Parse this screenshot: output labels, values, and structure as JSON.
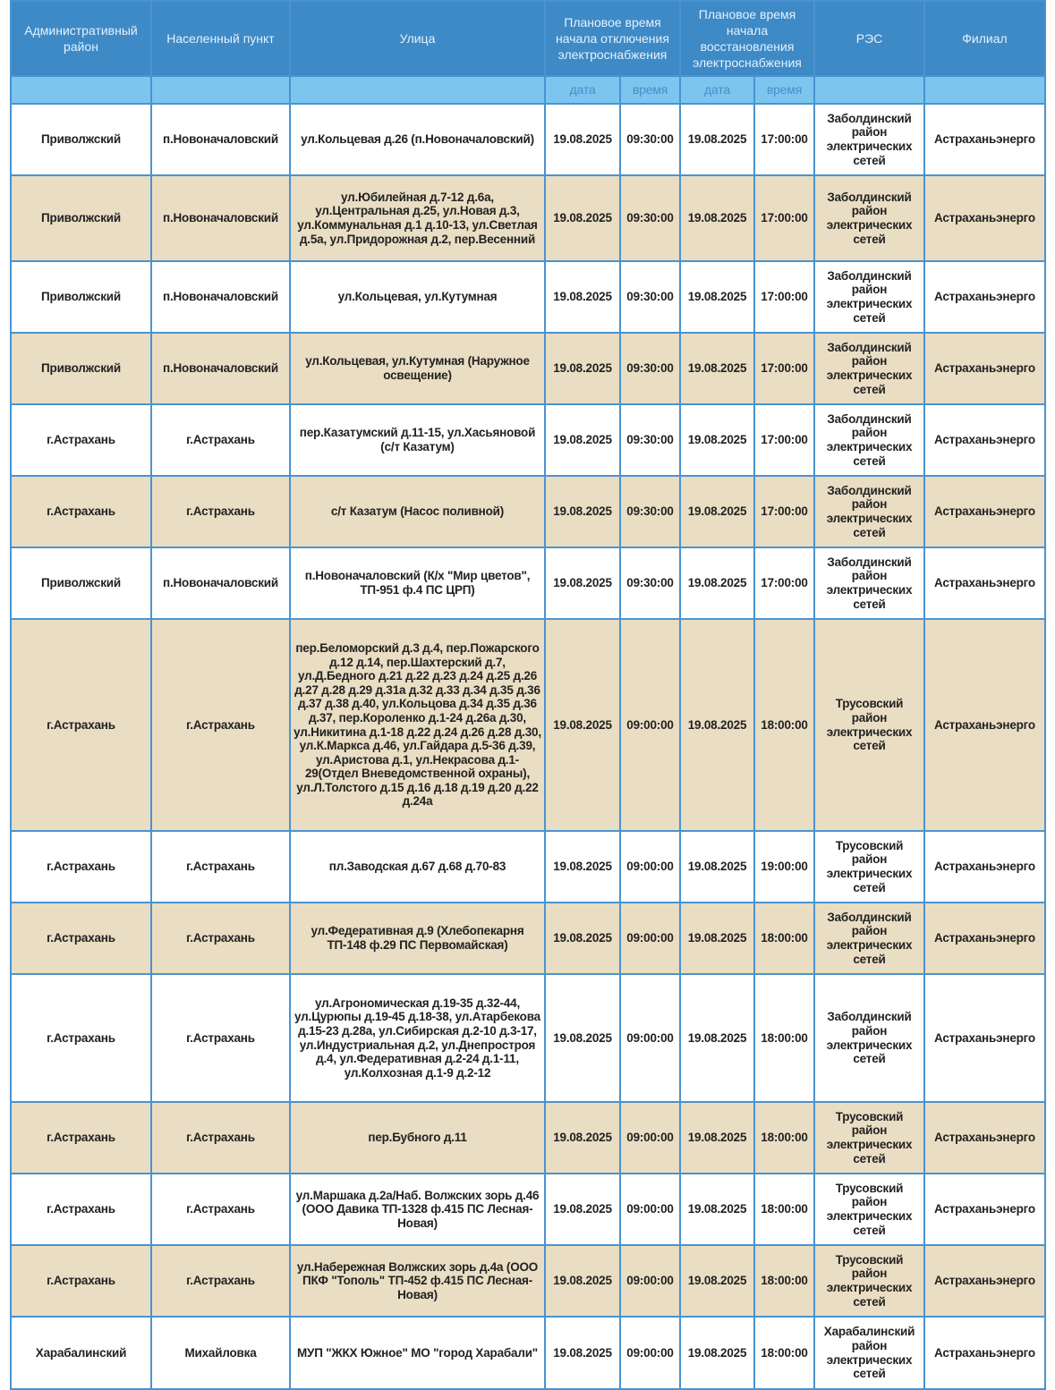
{
  "headers": {
    "district": "Административный район",
    "settlement": "Населенный пункт",
    "street": "Улица",
    "off_time": "Плановое время начала отключения электроснабжения",
    "on_time": "Плановое время начала восстановления электроснабжения",
    "res": "РЭС",
    "branch": "Филиал",
    "date": "дата",
    "time": "время"
  },
  "rows": [
    {
      "district": "Приволжский",
      "settlement": "п.Новоначаловский",
      "street": "ул.Кольцевая д.26 (п.Новоначаловский)",
      "off_date": "19.08.2025",
      "off_time": "09:30:00",
      "on_date": "19.08.2025",
      "on_time": "17:00:00",
      "res": "Заболдинский район электрических сетей",
      "branch": "Астраханьэнерго"
    },
    {
      "district": "Приволжский",
      "settlement": "п.Новоначаловский",
      "street": "ул.Юбилейная д.7-12 д.6а, ул.Центральная д.25, ул.Новая д.3, ул.Коммунальная д.1 д.10-13, ул.Светлая д.5а, ул.Придорожная д.2, пер.Весенний",
      "off_date": "19.08.2025",
      "off_time": "09:30:00",
      "on_date": "19.08.2025",
      "on_time": "17:00:00",
      "res": "Заболдинский район электрических сетей",
      "branch": "Астраханьэнерго"
    },
    {
      "district": "Приволжский",
      "settlement": "п.Новоначаловский",
      "street": "ул.Кольцевая, ул.Кутумная",
      "off_date": "19.08.2025",
      "off_time": "09:30:00",
      "on_date": "19.08.2025",
      "on_time": "17:00:00",
      "res": "Заболдинский район электрических сетей",
      "branch": "Астраханьэнерго"
    },
    {
      "district": "Приволжский",
      "settlement": "п.Новоначаловский",
      "street": "ул.Кольцевая, ул.Кутумная (Наружное освещение)",
      "off_date": "19.08.2025",
      "off_time": "09:30:00",
      "on_date": "19.08.2025",
      "on_time": "17:00:00",
      "res": "Заболдинский район электрических сетей",
      "branch": "Астраханьэнерго"
    },
    {
      "district": "г.Астрахань",
      "settlement": "г.Астрахань",
      "street": "пер.Казатумский д.11-15, ул.Хасьяновой (с/т Казатум)",
      "off_date": "19.08.2025",
      "off_time": "09:30:00",
      "on_date": "19.08.2025",
      "on_time": "17:00:00",
      "res": "Заболдинский район электрических сетей",
      "branch": "Астраханьэнерго"
    },
    {
      "district": "г.Астрахань",
      "settlement": "г.Астрахань",
      "street": "с/т Казатум (Насос поливной)",
      "off_date": "19.08.2025",
      "off_time": "09:30:00",
      "on_date": "19.08.2025",
      "on_time": "17:00:00",
      "res": "Заболдинский район электрических сетей",
      "branch": "Астраханьэнерго"
    },
    {
      "district": "Приволжский",
      "settlement": "п.Новоначаловский",
      "street": "п.Новоначаловский (К/х \"Мир цветов\", ТП-951 ф.4 ПС ЦРП)",
      "off_date": "19.08.2025",
      "off_time": "09:30:00",
      "on_date": "19.08.2025",
      "on_time": "17:00:00",
      "res": "Заболдинский район электрических сетей",
      "branch": "Астраханьэнерго"
    },
    {
      "district": "г.Астрахань",
      "settlement": "г.Астрахань",
      "street": "пер.Беломорский д.3 д.4, пер.Пожарского д.12 д.14, пер.Шахтерский д.7, ул.Д.Бедного д.21 д.22 д.23 д.24 д.25 д.26 д.27 д.28 д.29 д.31а д.32 д.33 д.34 д.35 д.36 д.37 д.38 д.40, ул.Кольцова д.34 д.35 д.36 д.37, пер.Короленко д.1-24 д.26а д.30, ул.Никитина д.1-18 д.22 д.24 д.26 д.28 д.30, ул.К.Маркса д.46, ул.Гайдара д.5-36 д.39, ул.Аристова д.1, ул.Некрасова д.1-29(Отдел Вневедомственной охраны), ул.Л.Толстого д.15 д.16 д.18 д.19 д.20 д.22 д.24а",
      "off_date": "19.08.2025",
      "off_time": "09:00:00",
      "on_date": "19.08.2025",
      "on_time": "18:00:00",
      "res": "Трусовский район электрических сетей",
      "branch": "Астраханьэнерго"
    },
    {
      "district": "г.Астрахань",
      "settlement": "г.Астрахань",
      "street": "пл.Заводская д.67 д.68 д.70-83",
      "off_date": "19.08.2025",
      "off_time": "09:00:00",
      "on_date": "19.08.2025",
      "on_time": "19:00:00",
      "res": "Трусовский район электрических сетей",
      "branch": "Астраханьэнерго"
    },
    {
      "district": "г.Астрахань",
      "settlement": "г.Астрахань",
      "street": "ул.Федеративная д.9 (Хлебопекарня ТП-148 ф.29 ПС Первомайская)",
      "off_date": "19.08.2025",
      "off_time": "09:00:00",
      "on_date": "19.08.2025",
      "on_time": "18:00:00",
      "res": "Заболдинский район электрических сетей",
      "branch": "Астраханьэнерго"
    },
    {
      "district": "г.Астрахань",
      "settlement": "г.Астрахань",
      "street": "ул.Агрономическая д.19-35 д.32-44, ул.Цурюпы д.19-45 д.18-38, ул.Атарбекова д.15-23 д.28а, ул.Сибирская д.2-10 д.3-17, ул.Индустриальная д.2, ул.Днепростроя д.4, ул.Федеративная д.2-24 д.1-11, ул.Колхозная д.1-9 д.2-12",
      "off_date": "19.08.2025",
      "off_time": "09:00:00",
      "on_date": "19.08.2025",
      "on_time": "18:00:00",
      "res": "Заболдинский район электрических сетей",
      "branch": "Астраханьэнерго"
    },
    {
      "district": "г.Астрахань",
      "settlement": "г.Астрахань",
      "street": "пер.Бубного д.11",
      "off_date": "19.08.2025",
      "off_time": "09:00:00",
      "on_date": "19.08.2025",
      "on_time": "18:00:00",
      "res": "Трусовский район электрических сетей",
      "branch": "Астраханьэнерго"
    },
    {
      "district": "г.Астрахань",
      "settlement": "г.Астрахань",
      "street": "ул.Маршака д.2а/Наб. Волжских зорь д.46 (ООО Давика ТП-1328 ф.415 ПС Лесная-Новая)",
      "off_date": "19.08.2025",
      "off_time": "09:00:00",
      "on_date": "19.08.2025",
      "on_time": "18:00:00",
      "res": "Трусовский район электрических сетей",
      "branch": "Астраханьэнерго"
    },
    {
      "district": "г.Астрахань",
      "settlement": "г.Астрахань",
      "street": "ул.Набережная Волжских зорь д.4а (ООО ПКФ \"Тополь\" ТП-452 ф.415 ПС Лесная-Новая)",
      "off_date": "19.08.2025",
      "off_time": "09:00:00",
      "on_date": "19.08.2025",
      "on_time": "18:00:00",
      "res": "Трусовский район электрических сетей",
      "branch": "Астраханьэнерго"
    },
    {
      "district": "Харабалинский",
      "settlement": "Михайловка",
      "street": "МУП \"ЖКХ Южное\" МО \"город Харабали\"",
      "off_date": "19.08.2025",
      "off_time": "09:00:00",
      "on_date": "19.08.2025",
      "on_time": "18:00:00",
      "res": "Харабалинский район электрических сетей",
      "branch": "Астраханьэнерго"
    }
  ]
}
